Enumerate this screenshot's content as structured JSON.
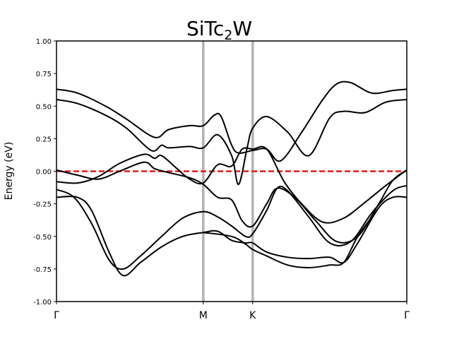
{
  "chart_data": {
    "type": "line",
    "title": "SiTc",
    "title_subscript": "2",
    "title_suffix": "W",
    "ylabel": "Energy (eV)",
    "xlabel": "",
    "ylim": [
      -1.0,
      1.0
    ],
    "xlim": [
      0,
      1
    ],
    "y_ticks": [
      "-1.00",
      "-0.75",
      "-0.50",
      "-0.25",
      "0.00",
      "0.25",
      "0.50",
      "0.75",
      "1.00"
    ],
    "k_points": [
      {
        "label": "Γ",
        "x": 0
      },
      {
        "label": "M",
        "x": 0.419
      },
      {
        "label": "K",
        "x": 0.56
      },
      {
        "label": "Γ",
        "x": 1
      }
    ],
    "fermi_level": 0.0,
    "colors": {
      "bands": "#000000",
      "fermi": "#e41a1c",
      "kline": "#b3b3b3"
    },
    "series": [
      {
        "values": [
          [
            0,
            0.63
          ],
          [
            0.06,
            0.6
          ],
          [
            0.14,
            0.5
          ],
          [
            0.2,
            0.4
          ],
          [
            0.28,
            0.26
          ],
          [
            0.32,
            0.32
          ],
          [
            0.38,
            0.35
          ],
          [
            0.419,
            0.35
          ],
          [
            0.45,
            0.43
          ],
          [
            0.47,
            0.42
          ],
          [
            0.5,
            0.2
          ],
          [
            0.52,
            0.14
          ],
          [
            0.56,
            0.16
          ],
          [
            0.6,
            0.17
          ],
          [
            0.64,
            0.08
          ],
          [
            0.7,
            0.3
          ],
          [
            0.76,
            0.55
          ],
          [
            0.8,
            0.67
          ],
          [
            0.84,
            0.68
          ],
          [
            0.9,
            0.6
          ],
          [
            0.96,
            0.62
          ],
          [
            1,
            0.63
          ]
        ]
      },
      {
        "values": [
          [
            0,
            0.55
          ],
          [
            0.06,
            0.52
          ],
          [
            0.14,
            0.43
          ],
          [
            0.2,
            0.33
          ],
          [
            0.27,
            0.16
          ],
          [
            0.3,
            0.2
          ],
          [
            0.32,
            0.18
          ],
          [
            0.38,
            0.19
          ],
          [
            0.419,
            0.18
          ],
          [
            0.46,
            0.28
          ],
          [
            0.5,
            0.12
          ],
          [
            0.52,
            -0.1
          ],
          [
            0.545,
            0.19
          ],
          [
            0.56,
            0.33
          ],
          [
            0.6,
            0.42
          ],
          [
            0.66,
            0.3
          ],
          [
            0.72,
            0.12
          ],
          [
            0.78,
            0.41
          ],
          [
            0.82,
            0.46
          ],
          [
            0.88,
            0.45
          ],
          [
            0.94,
            0.53
          ],
          [
            1,
            0.55
          ]
        ]
      },
      {
        "values": [
          [
            0,
            -0.08
          ],
          [
            0.06,
            -0.09
          ],
          [
            0.12,
            -0.04
          ],
          [
            0.18,
            0.06
          ],
          [
            0.25,
            0.13
          ],
          [
            0.28,
            0.1
          ],
          [
            0.3,
            0.12
          ],
          [
            0.34,
            0.03
          ],
          [
            0.38,
            -0.06
          ],
          [
            0.419,
            -0.09
          ],
          [
            0.46,
            0.05
          ],
          [
            0.5,
            0.04
          ],
          [
            0.53,
            0.17
          ],
          [
            0.56,
            0.17
          ],
          [
            0.6,
            0.17
          ],
          [
            0.65,
            -0.08
          ],
          [
            0.7,
            -0.25
          ],
          [
            0.76,
            -0.39
          ],
          [
            0.82,
            -0.36
          ],
          [
            0.88,
            -0.24
          ],
          [
            0.94,
            -0.11
          ],
          [
            1,
            0.01
          ]
        ]
      },
      {
        "values": [
          [
            0,
            0.01
          ],
          [
            0.06,
            -0.03
          ],
          [
            0.12,
            -0.06
          ],
          [
            0.18,
            0.0
          ],
          [
            0.25,
            0.07
          ],
          [
            0.28,
            0.02
          ],
          [
            0.32,
            -0.01
          ],
          [
            0.38,
            -0.05
          ],
          [
            0.419,
            -0.1
          ],
          [
            0.46,
            -0.2
          ],
          [
            0.5,
            -0.22
          ],
          [
            0.53,
            -0.38
          ],
          [
            0.56,
            -0.42
          ],
          [
            0.6,
            -0.25
          ],
          [
            0.63,
            -0.13
          ],
          [
            0.68,
            -0.2
          ],
          [
            0.74,
            -0.38
          ],
          [
            0.8,
            -0.54
          ],
          [
            0.86,
            -0.5
          ],
          [
            0.92,
            -0.25
          ],
          [
            0.96,
            -0.07
          ],
          [
            1,
            0.01
          ]
        ]
      },
      {
        "values": [
          [
            0,
            -0.14
          ],
          [
            0.05,
            -0.2
          ],
          [
            0.1,
            -0.4
          ],
          [
            0.15,
            -0.68
          ],
          [
            0.19,
            -0.75
          ],
          [
            0.24,
            -0.65
          ],
          [
            0.3,
            -0.5
          ],
          [
            0.36,
            -0.36
          ],
          [
            0.419,
            -0.31
          ],
          [
            0.46,
            -0.35
          ],
          [
            0.5,
            -0.42
          ],
          [
            0.54,
            -0.5
          ],
          [
            0.56,
            -0.48
          ],
          [
            0.6,
            -0.3
          ],
          [
            0.63,
            -0.13
          ],
          [
            0.66,
            -0.15
          ],
          [
            0.72,
            -0.35
          ],
          [
            0.78,
            -0.55
          ],
          [
            0.84,
            -0.54
          ],
          [
            0.9,
            -0.32
          ],
          [
            0.96,
            -0.15
          ],
          [
            1,
            -0.11
          ]
        ]
      },
      {
        "values": [
          [
            0,
            -0.2
          ],
          [
            0.06,
            -0.2
          ],
          [
            0.1,
            -0.3
          ],
          [
            0.15,
            -0.62
          ],
          [
            0.19,
            -0.8
          ],
          [
            0.24,
            -0.7
          ],
          [
            0.3,
            -0.58
          ],
          [
            0.36,
            -0.5
          ],
          [
            0.419,
            -0.47
          ],
          [
            0.46,
            -0.46
          ],
          [
            0.5,
            -0.53
          ],
          [
            0.54,
            -0.55
          ],
          [
            0.56,
            -0.55
          ],
          [
            0.6,
            -0.62
          ],
          [
            0.66,
            -0.66
          ],
          [
            0.72,
            -0.67
          ],
          [
            0.78,
            -0.66
          ],
          [
            0.82,
            -0.7
          ],
          [
            0.86,
            -0.55
          ],
          [
            0.92,
            -0.28
          ],
          [
            0.96,
            -0.2
          ],
          [
            1,
            -0.2
          ]
        ]
      },
      {
        "values": [
          [
            0.419,
            -0.47
          ],
          [
            0.5,
            -0.5
          ],
          [
            0.54,
            -0.56
          ],
          [
            0.56,
            -0.6
          ],
          [
            0.6,
            -0.65
          ],
          [
            0.66,
            -0.72
          ],
          [
            0.72,
            -0.74
          ],
          [
            0.78,
            -0.72
          ],
          [
            0.82,
            -0.7
          ],
          [
            0.86,
            -0.5
          ],
          [
            0.92,
            -0.28
          ]
        ]
      }
    ]
  }
}
